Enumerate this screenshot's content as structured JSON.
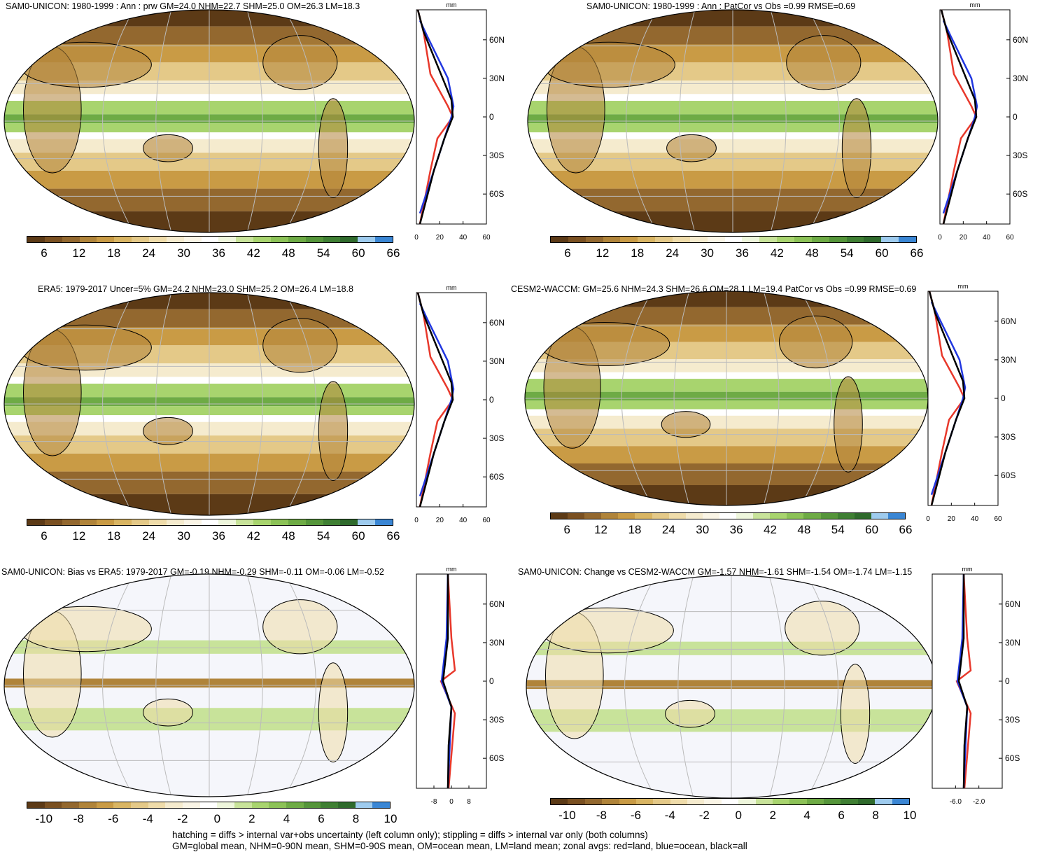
{
  "panels": [
    {
      "id": "p1",
      "title": "SAM0-UNICON: 1980-1999 : Ann : prw GM=24.0 NHM=22.7 SHM=25.0 OM=26.3 LM=18.3",
      "type": "abs",
      "cbar_ticks": [
        "6",
        "12",
        "18",
        "24",
        "30",
        "36",
        "42",
        "48",
        "54",
        "60",
        "66"
      ],
      "zonal_ticks": [
        "0",
        "20",
        "40",
        "60"
      ],
      "lat_ticks": [
        "60N",
        "30N",
        "0",
        "30S",
        "60S"
      ],
      "unit": "mm"
    },
    {
      "id": "p2",
      "title": "SAM0-UNICON: 1980-1999 : Ann : PatCor vs Obs =0.99 RMSE=0.69",
      "type": "abs",
      "cbar_ticks": [
        "6",
        "12",
        "18",
        "24",
        "30",
        "36",
        "42",
        "48",
        "54",
        "60",
        "66"
      ],
      "zonal_ticks": [
        "0",
        "20",
        "40",
        "60"
      ],
      "lat_ticks": [
        "60N",
        "30N",
        "0",
        "30S",
        "60S"
      ],
      "unit": "mm"
    },
    {
      "id": "p3",
      "title": "ERA5: 1979-2017 Uncer=5% GM=24.2 NHM=23.0 SHM=25.2 OM=26.4 LM=18.8",
      "type": "abs",
      "cbar_ticks": [
        "6",
        "12",
        "18",
        "24",
        "30",
        "36",
        "42",
        "48",
        "54",
        "60",
        "66"
      ],
      "zonal_ticks": [
        "0",
        "20",
        "40",
        "60"
      ],
      "lat_ticks": [
        "60N",
        "30N",
        "0",
        "30S",
        "60S"
      ],
      "unit": "mm"
    },
    {
      "id": "p4",
      "title": "CESM2-WACCM: GM=25.6 NHM=24.3 SHM=26.6 OM=28.1 LM=19.4 PatCor vs Obs =0.99 RMSE=0.69",
      "type": "abs",
      "cbar_ticks": [
        "6",
        "12",
        "18",
        "24",
        "30",
        "36",
        "42",
        "48",
        "54",
        "60",
        "66"
      ],
      "zonal_ticks": [
        "0",
        "20",
        "40",
        "60"
      ],
      "lat_ticks": [
        "60N",
        "30N",
        "0",
        "30S",
        "60S"
      ],
      "unit": "mm"
    },
    {
      "id": "p5",
      "title": "SAM0-UNICON: Bias vs ERA5: 1979-2017 GM=-0.19 NHM=-0.29 SHM=-0.11 OM=-0.06 LM=-0.52",
      "type": "diff",
      "cbar_ticks": [
        "-10",
        "-8",
        "-6",
        "-4",
        "-2",
        "0",
        "2",
        "4",
        "6",
        "8",
        "10"
      ],
      "zonal_ticks": [
        "-8",
        "0",
        "8"
      ],
      "lat_ticks": [
        "60N",
        "30N",
        "0",
        "30S",
        "60S"
      ],
      "unit": "mm"
    },
    {
      "id": "p6",
      "title": "SAM0-UNICON: Change vs CESM2-WACCM GM=-1.57 NHM=-1.61 SHM=-1.54 OM=-1.74 LM=-1.15",
      "type": "diff",
      "cbar_ticks": [
        "-10",
        "-8",
        "-6",
        "-4",
        "-2",
        "0",
        "2",
        "4",
        "6",
        "8",
        "10"
      ],
      "zonal_ticks": [
        "-6.0",
        "-2.0"
      ],
      "lat_ticks": [
        "60N",
        "30N",
        "0",
        "30S",
        "60S"
      ],
      "unit": "mm"
    }
  ],
  "footer": {
    "line1": "hatching = diffs > internal var+obs uncertainty (left column only); stippling = diffs > internal var only (both columns)",
    "line2": "GM=global mean, NHM=0-90N mean, SHM=0-90S mean, OM=ocean mean, LM=land mean; zonal avgs: red=land, blue=ocean, black=all"
  },
  "colors": {
    "abs_scale": [
      "#5c3a16",
      "#7a5021",
      "#93682f",
      "#b0843a",
      "#c99b45",
      "#d9b563",
      "#e4c988",
      "#efdcaa",
      "#f5ebce",
      "#faf5e6",
      "#ffffff",
      "#eef6dc",
      "#c8e39a",
      "#a8d46e",
      "#8cc257",
      "#6eab45",
      "#55953a",
      "#3f7f33",
      "#2f6a2c",
      "#9ecbee",
      "#3a86d4"
    ],
    "diff_scale": [
      "#5c3a16",
      "#7a5021",
      "#93682f",
      "#b0843a",
      "#c99b45",
      "#d9b563",
      "#e4c988",
      "#efdcaa",
      "#f5ebce",
      "#faf5e6",
      "#ffffff",
      "#eef6dc",
      "#c8e39a",
      "#a8d46e",
      "#8cc257",
      "#6eab45",
      "#55953a",
      "#3f7f33",
      "#2f6a2c",
      "#9ecbee",
      "#3a86d4"
    ],
    "land": "#e8382b",
    "ocean": "#2137e0",
    "all": "#000000"
  }
}
